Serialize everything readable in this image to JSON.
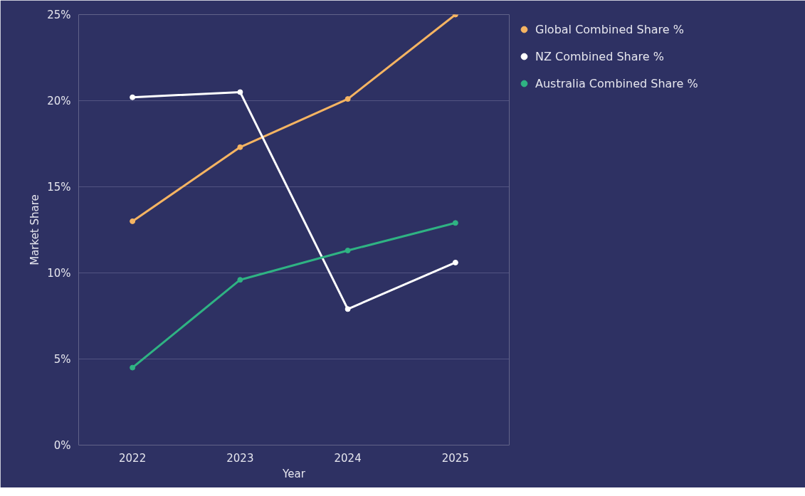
{
  "chart_data": {
    "type": "line",
    "xlabel": "Year",
    "ylabel": "Market Share",
    "categories": [
      "2022",
      "2023",
      "2024",
      "2025"
    ],
    "series": [
      {
        "name": "Global Combined Share %",
        "color": "#f5b462",
        "values": [
          13.0,
          17.3,
          20.1,
          25.0
        ]
      },
      {
        "name": "NZ Combined Share %",
        "color": "#ffffff",
        "values": [
          20.2,
          20.5,
          7.9,
          10.6
        ]
      },
      {
        "name": "Australia Combined Share %",
        "color": "#2fb383",
        "values": [
          4.5,
          9.6,
          11.3,
          12.9
        ]
      }
    ],
    "ylim": [
      0,
      25
    ],
    "yticks": [
      {
        "value": 0,
        "label": "0%"
      },
      {
        "value": 5,
        "label": "5%"
      },
      {
        "value": 10,
        "label": "10%"
      },
      {
        "value": 15,
        "label": "15%"
      },
      {
        "value": 20,
        "label": "20%"
      },
      {
        "value": 25,
        "label": "25%"
      }
    ],
    "grid": "y",
    "legend": "right",
    "marker": "circle",
    "line_style": "solid"
  }
}
